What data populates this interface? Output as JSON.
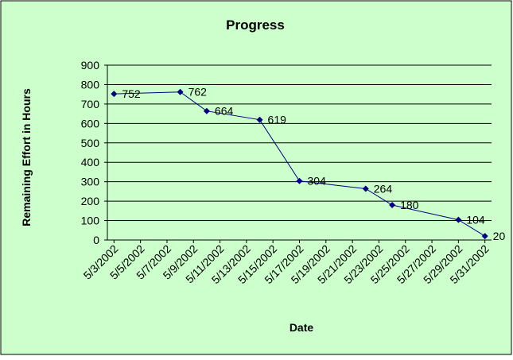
{
  "chart_data": {
    "type": "line",
    "title": "Progress",
    "x_label": "Date",
    "y_label": "Remaining Effort in Hours",
    "x": [
      "5/3/2002",
      "5/8/2002",
      "5/10/2002",
      "5/14/2002",
      "5/17/2002",
      "5/22/2002",
      "5/24/2002",
      "5/29/2002",
      "5/31/2002"
    ],
    "series": [
      {
        "name": "Remaining Effort",
        "color": "#000080",
        "values": [
          752,
          762,
          664,
          619,
          304,
          264,
          180,
          104,
          20
        ]
      }
    ],
    "xlim": [
      "5/3/2002",
      "5/31/2002"
    ],
    "xticks": [
      "5/3/2002",
      "5/5/2002",
      "5/7/2002",
      "5/9/2002",
      "5/11/2002",
      "5/13/2002",
      "5/15/2002",
      "5/17/2002",
      "5/19/2002",
      "5/21/2002",
      "5/23/2002",
      "5/25/2002",
      "5/27/2002",
      "5/29/2002",
      "5/31/2002"
    ],
    "ylim": [
      0,
      900
    ],
    "yticks": [
      0,
      100,
      200,
      300,
      400,
      500,
      600,
      700,
      800,
      900
    ],
    "grid": true,
    "background": "#ccffcc"
  }
}
